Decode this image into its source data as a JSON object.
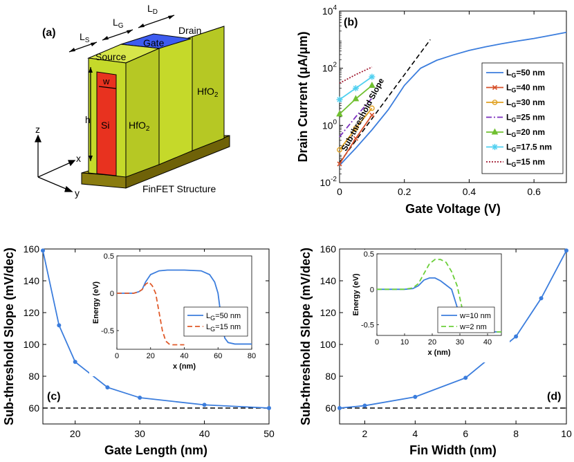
{
  "diagram": {
    "panel_label": "(a)",
    "labels": {
      "ls": "L",
      "ls_sub": "S",
      "lg": "L",
      "lg_sub": "G",
      "ld": "L",
      "ld_sub": "D",
      "gate": "Gate",
      "drain": "Drain",
      "source": "Source",
      "w": "w",
      "h": "h",
      "si": "Si",
      "hfo2_left": "HfO",
      "hfo2_left_sub": "2",
      "hfo2_right": "HfO",
      "hfo2_right_sub": "2",
      "axis_z": "z",
      "axis_x": "x",
      "axis_y": "y",
      "caption": "FinFET Structure"
    },
    "colors": {
      "hfo2": "#c5d92a",
      "gate": "#2f4ee8",
      "si": "#e8321f",
      "substrate": "#9a8a14"
    }
  },
  "chart_data": [
    {
      "id": "b",
      "panel_label": "(b)",
      "type": "line",
      "yscale": "log",
      "xlabel": "Gate Voltage (V)",
      "ylabel": "Drain Current (μA/μm)",
      "xlim": [
        0,
        0.7
      ],
      "ylim_exp": [
        -2,
        4
      ],
      "xticks": [
        0,
        0.2,
        0.4,
        0.6
      ],
      "xtick_labels": [
        "0",
        "0.2",
        "0.4",
        "0.6"
      ],
      "ytick_exps": [
        -2,
        0,
        2,
        4
      ],
      "ytick_base": "10",
      "annotation": "Sub-threshold Slope",
      "series": [
        {
          "name": "L_G=50 nm",
          "label_main": "L",
          "label_sub": "G",
          "label_rest": "=50 nm",
          "color": "#3b7ddd",
          "style": "solid",
          "marker": "none",
          "x": [
            0,
            0.05,
            0.1,
            0.15,
            0.2,
            0.25,
            0.3,
            0.35,
            0.4,
            0.45,
            0.5,
            0.55,
            0.6,
            0.65,
            0.7
          ],
          "y": [
            0.04,
            0.16,
            0.7,
            3.5,
            25,
            100,
            190,
            290,
            420,
            560,
            720,
            900,
            1100,
            1400,
            1800
          ]
        },
        {
          "name": "L_G=40 nm",
          "label_main": "L",
          "label_sub": "G",
          "label_rest": "=40 nm",
          "color": "#d6502a",
          "style": "solid",
          "marker": "x",
          "x": [
            0,
            0.05,
            0.1
          ],
          "y": [
            0.045,
            0.35,
            2.3
          ]
        },
        {
          "name": "L_G=30 nm",
          "label_main": "L",
          "label_sub": "G",
          "label_rest": "=30 nm",
          "color": "#e0a020",
          "style": "solid",
          "marker": "circle",
          "x": [
            0,
            0.05,
            0.1
          ],
          "y": [
            0.14,
            0.8,
            4.0
          ]
        },
        {
          "name": "L_G=25 nm",
          "label_main": "L",
          "label_sub": "G",
          "label_rest": "=25 nm",
          "color": "#7b2fbf",
          "style": "dashdot",
          "marker": "none",
          "x": [
            0,
            0.05,
            0.1
          ],
          "y": [
            0.4,
            2.0,
            9.0
          ]
        },
        {
          "name": "L_G=20 nm",
          "label_main": "L",
          "label_sub": "G",
          "label_rest": "=20 nm",
          "color": "#70c030",
          "style": "solid",
          "marker": "triangle",
          "x": [
            0,
            0.05,
            0.1
          ],
          "y": [
            2.5,
            8.5,
            25
          ]
        },
        {
          "name": "L_G=17.5 nm",
          "label_main": "L",
          "label_sub": "G",
          "label_rest": "=17.5 nm",
          "color": "#50d0f0",
          "style": "solid",
          "marker": "star",
          "x": [
            0,
            0.05,
            0.1
          ],
          "y": [
            8,
            20,
            50
          ]
        },
        {
          "name": "L_G=15 nm",
          "label_main": "L",
          "label_sub": "G",
          "label_rest": "=15 nm",
          "color": "#a01a30",
          "style": "dotted",
          "marker": "none",
          "x": [
            0,
            0.05,
            0.1
          ],
          "y": [
            30,
            60,
            110
          ]
        }
      ],
      "reference_line": {
        "color": "#000000",
        "style": "dashed",
        "x": [
          0,
          0.28
        ],
        "y": [
          0.05,
          1000
        ]
      }
    },
    {
      "id": "c",
      "panel_label": "(c)",
      "type": "line",
      "xlabel": "Gate Length (nm)",
      "ylabel": "Sub-threshold Slope (mV/dec)",
      "xlim": [
        15,
        50
      ],
      "ylim": [
        50,
        160
      ],
      "xticks": [
        20,
        30,
        40,
        50
      ],
      "yticks": [
        60,
        80,
        100,
        120,
        140,
        160
      ],
      "series": [
        {
          "name": "SS",
          "color": "#3b7ddd",
          "x": [
            15,
            17.5,
            20,
            25,
            30,
            40,
            50
          ],
          "y": [
            159,
            112,
            89,
            73,
            66.5,
            62,
            60
          ]
        }
      ],
      "reference_y": 60,
      "inset": {
        "xlabel": "x (nm)",
        "ylabel": "Energy (eV)",
        "xlim": [
          0,
          80
        ],
        "ylim": [
          -0.75,
          0.5
        ],
        "xticks": [
          0,
          20,
          40,
          60,
          80
        ],
        "yticks": [
          0.5,
          0,
          -0.5
        ],
        "ytick_labels": [
          "0.5",
          "0",
          "-0.5"
        ],
        "series": [
          {
            "name": "L_G=50 nm",
            "label_main": "L",
            "label_sub": "G",
            "label_rest": "=50 nm",
            "color": "#3b7ddd",
            "style": "solid",
            "x": [
              0,
              10,
              13,
              15,
              17,
              20,
              25,
              30,
              40,
              50,
              55,
              58,
              60,
              62,
              64,
              66,
              70,
              80
            ],
            "y": [
              0,
              0,
              0.02,
              0.05,
              0.15,
              0.25,
              0.3,
              0.31,
              0.31,
              0.3,
              0.25,
              0.15,
              0,
              -0.35,
              -0.6,
              -0.66,
              -0.68,
              -0.68
            ]
          },
          {
            "name": "L_G=15 nm",
            "label_main": "L",
            "label_sub": "G",
            "label_rest": "=15 nm",
            "color": "#e05a2a",
            "style": "dashed",
            "x": [
              0,
              10,
              13,
              15,
              17,
              19,
              21,
              23,
              25,
              27,
              29,
              31,
              33,
              40
            ],
            "y": [
              0,
              0,
              0.02,
              0.05,
              0.12,
              0.15,
              0.1,
              0,
              -0.25,
              -0.5,
              -0.64,
              -0.68,
              -0.69,
              -0.69
            ]
          }
        ]
      }
    },
    {
      "id": "d",
      "panel_label": "(d)",
      "type": "line",
      "xlabel": "Fin Width (nm)",
      "ylabel": "Sub-threshold Slope (mV/dec)",
      "xlim": [
        1,
        10
      ],
      "ylim": [
        50,
        160
      ],
      "xticks": [
        2,
        4,
        6,
        8,
        10
      ],
      "yticks": [
        60,
        80,
        100,
        120,
        140,
        160
      ],
      "series": [
        {
          "name": "SS",
          "color": "#3b7ddd",
          "x": [
            1,
            2,
            4,
            6,
            8,
            9,
            10
          ],
          "y": [
            60,
            61.5,
            67,
            79,
            105,
            129,
            159
          ]
        }
      ],
      "reference_y": 60,
      "inset": {
        "xlabel": "x (nm)",
        "ylabel": "Energy (eV)",
        "xlim": [
          0,
          45
        ],
        "ylim": [
          -0.65,
          0.5
        ],
        "xticks": [
          0,
          10,
          20,
          30,
          40
        ],
        "yticks": [
          0.5,
          0,
          -0.5
        ],
        "ytick_labels": [
          "0.5",
          "0",
          "-0.5"
        ],
        "series": [
          {
            "name": "w=10 nm",
            "label_main": "w=10 nm",
            "color": "#3b7ddd",
            "style": "solid",
            "x": [
              0,
              10,
              13,
              15,
              17,
              19,
              21,
              23,
              25,
              27,
              29,
              31,
              33,
              36,
              45
            ],
            "y": [
              0,
              0,
              0.01,
              0.05,
              0.13,
              0.16,
              0.16,
              0.12,
              0.06,
              0,
              -0.25,
              -0.5,
              -0.58,
              -0.6,
              -0.6
            ]
          },
          {
            "name": "w=2 nm",
            "label_main": "w=2 nm",
            "color": "#6ccf3a",
            "style": "dashed",
            "x": [
              0,
              10,
              13,
              15,
              17,
              19,
              21,
              23,
              25,
              27,
              29,
              31,
              33,
              35,
              38,
              45
            ],
            "y": [
              0,
              0,
              0.02,
              0.08,
              0.22,
              0.36,
              0.42,
              0.42,
              0.38,
              0.25,
              0.05,
              -0.3,
              -0.52,
              -0.58,
              -0.6,
              -0.6
            ]
          }
        ]
      }
    }
  ]
}
